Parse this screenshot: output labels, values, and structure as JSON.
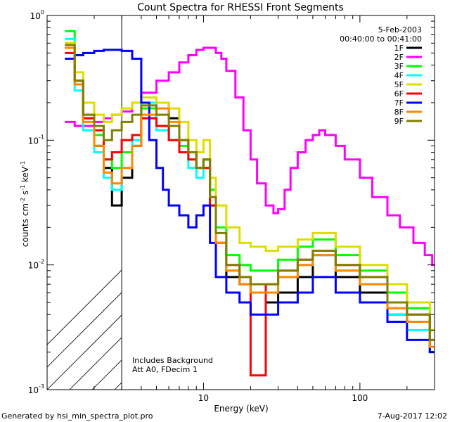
{
  "chart_data": {
    "type": "line",
    "title": "Count Spectra for RHESSI Front Segments",
    "xlabel": "Energy (keV)",
    "ylabel_parts": {
      "prefix": "counts cm",
      "exp1": "-2",
      "mid1": " s",
      "exp2": "-1",
      "mid2": " keV",
      "exp3": "-1"
    },
    "xscale": "log",
    "yscale": "log",
    "xlim": [
      1.0,
      300.0
    ],
    "ylim": [
      0.001,
      1.0
    ],
    "x_ticks": [
      {
        "value": 10,
        "label": "10"
      },
      {
        "value": 100,
        "label": "100"
      }
    ],
    "y_ticks": [
      {
        "value": 1.0,
        "base": "10",
        "exp": "0"
      },
      {
        "value": 0.1,
        "base": "10",
        "exp": "-1"
      },
      {
        "value": 0.01,
        "base": "10",
        "exp": "-2"
      },
      {
        "value": 0.001,
        "base": "10",
        "exp": "-3"
      }
    ],
    "legend": {
      "placement": "top-right",
      "date": "5-Feb-2003",
      "time_range": "00:40:00 to 00:41:00"
    },
    "hatched_region": {
      "x_min": 1.0,
      "x_max": 3.0
    },
    "annotation_lines": [
      "Includes Background",
      "Att A0, FDecim 1"
    ],
    "footer_left": "Generated by hsi_min_spectra_plot.pro",
    "footer_right": "7-Aug-2017 12:02",
    "series": [
      {
        "name": "1F",
        "color": "#000000",
        "x": [
          1.3,
          1.5,
          1.7,
          2.0,
          2.3,
          2.6,
          3.0,
          3.5,
          4.0,
          5.0,
          6.0,
          7.0,
          8.0,
          9.0,
          10.0,
          11.0,
          12.0,
          14.0,
          17.0,
          20.0,
          25.0,
          30.0,
          40.0,
          50.0,
          70.0,
          100.0,
          150.0,
          200.0,
          280.0
        ],
        "y": [
          0.55,
          0.3,
          0.15,
          0.09,
          0.06,
          0.03,
          0.05,
          0.09,
          0.15,
          0.2,
          0.15,
          0.1,
          0.08,
          0.06,
          0.07,
          0.03,
          0.015,
          0.008,
          0.007,
          0.006,
          0.005,
          0.006,
          0.008,
          0.012,
          0.008,
          0.006,
          0.004,
          0.0035,
          0.002
        ]
      },
      {
        "name": "2F",
        "color": "#ff00ff",
        "x": [
          1.3,
          1.5,
          1.7,
          2.0,
          2.3,
          2.6,
          3.0,
          3.5,
          4.0,
          5.0,
          6.0,
          7.0,
          8.0,
          9.0,
          10.0,
          11.0,
          12.0,
          13.0,
          14.0,
          16.0,
          18.0,
          20.0,
          22.0,
          25.0,
          28.0,
          30.0,
          33.0,
          36.0,
          40.0,
          45.0,
          50.0,
          55.0,
          60.0,
          70.0,
          80.0,
          100.0,
          120.0,
          150.0,
          180.0,
          220.0,
          260.0,
          290.0
        ],
        "y": [
          0.14,
          0.13,
          0.13,
          0.14,
          0.15,
          0.16,
          0.17,
          0.2,
          0.24,
          0.3,
          0.35,
          0.42,
          0.48,
          0.53,
          0.55,
          0.55,
          0.5,
          0.45,
          0.36,
          0.22,
          0.12,
          0.07,
          0.045,
          0.03,
          0.026,
          0.028,
          0.04,
          0.06,
          0.08,
          0.1,
          0.11,
          0.12,
          0.11,
          0.09,
          0.07,
          0.05,
          0.035,
          0.025,
          0.02,
          0.015,
          0.012,
          0.01
        ]
      },
      {
        "name": "3F",
        "color": "#00ff00",
        "x": [
          1.3,
          1.5,
          1.7,
          2.0,
          2.3,
          2.6,
          3.0,
          3.5,
          4.0,
          5.0,
          6.0,
          7.0,
          8.0,
          9.0,
          10.0,
          11.0,
          12.0,
          14.0,
          17.0,
          20.0,
          25.0,
          30.0,
          40.0,
          50.0,
          70.0,
          100.0,
          150.0,
          200.0,
          280.0
        ],
        "y": [
          0.75,
          0.3,
          0.16,
          0.11,
          0.07,
          0.06,
          0.08,
          0.1,
          0.18,
          0.13,
          0.1,
          0.09,
          0.07,
          0.06,
          0.07,
          0.04,
          0.02,
          0.012,
          0.01,
          0.009,
          0.009,
          0.011,
          0.014,
          0.016,
          0.012,
          0.009,
          0.006,
          0.0045,
          0.003
        ]
      },
      {
        "name": "4F",
        "color": "#00ffff",
        "x": [
          1.3,
          1.5,
          1.7,
          2.0,
          2.3,
          2.6,
          3.0,
          3.5,
          4.0,
          5.0,
          6.0,
          7.0,
          8.0,
          9.0,
          10.0,
          11.0,
          12.0,
          14.0,
          17.0,
          20.0,
          25.0,
          30.0,
          40.0,
          50.0,
          70.0,
          100.0,
          150.0,
          200.0,
          280.0
        ],
        "y": [
          0.65,
          0.25,
          0.12,
          0.08,
          0.05,
          0.04,
          0.06,
          0.1,
          0.2,
          0.12,
          0.1,
          0.08,
          0.06,
          0.05,
          0.06,
          0.03,
          0.015,
          0.009,
          0.007,
          0.006,
          0.006,
          0.008,
          0.01,
          0.012,
          0.009,
          0.007,
          0.004,
          0.003,
          0.002
        ]
      },
      {
        "name": "5F",
        "color": "#dddd00",
        "x": [
          1.3,
          1.5,
          1.7,
          2.0,
          2.3,
          2.6,
          3.0,
          3.5,
          4.0,
          5.0,
          6.0,
          7.0,
          8.0,
          9.0,
          10.0,
          11.0,
          12.0,
          14.0,
          17.0,
          20.0,
          25.0,
          30.0,
          40.0,
          50.0,
          70.0,
          100.0,
          150.0,
          200.0,
          280.0
        ],
        "y": [
          0.6,
          0.35,
          0.2,
          0.16,
          0.14,
          0.16,
          0.18,
          0.2,
          0.22,
          0.2,
          0.18,
          0.14,
          0.1,
          0.08,
          0.1,
          0.05,
          0.03,
          0.02,
          0.015,
          0.014,
          0.013,
          0.014,
          0.016,
          0.018,
          0.014,
          0.01,
          0.007,
          0.005,
          0.003
        ]
      },
      {
        "name": "6F",
        "color": "#ff0000",
        "x": [
          1.3,
          1.5,
          1.7,
          2.0,
          2.3,
          2.6,
          3.0,
          3.5,
          4.0,
          5.0,
          6.0,
          7.0,
          8.0,
          9.0,
          10.0,
          11.0,
          12.0,
          14.0,
          17.0,
          20.0,
          25.0,
          30.0,
          40.0,
          50.0,
          70.0,
          100.0,
          150.0,
          200.0,
          280.0
        ],
        "y": [
          0.5,
          0.3,
          0.15,
          0.12,
          0.07,
          0.08,
          0.1,
          0.11,
          0.15,
          0.13,
          0.1,
          0.08,
          0.07,
          0.06,
          0.06,
          0.03,
          0.015,
          0.01,
          0.008,
          0.0013,
          0.007,
          0.009,
          0.011,
          0.013,
          0.01,
          0.008,
          0.005,
          0.004,
          0.0025
        ]
      },
      {
        "name": "7F",
        "color": "#0000ff",
        "x": [
          1.3,
          1.5,
          1.7,
          2.0,
          2.3,
          2.6,
          3.0,
          3.5,
          4.0,
          4.5,
          5.0,
          5.5,
          6.0,
          7.0,
          8.0,
          9.0,
          10.0,
          11.0,
          12.0,
          14.0,
          17.0,
          20.0,
          25.0,
          30.0,
          40.0,
          50.0,
          70.0,
          100.0,
          150.0,
          200.0,
          280.0
        ],
        "y": [
          0.45,
          0.48,
          0.5,
          0.52,
          0.53,
          0.53,
          0.52,
          0.45,
          0.2,
          0.1,
          0.06,
          0.04,
          0.03,
          0.025,
          0.02,
          0.025,
          0.03,
          0.015,
          0.008,
          0.006,
          0.005,
          0.004,
          0.004,
          0.005,
          0.006,
          0.008,
          0.006,
          0.005,
          0.0035,
          0.0025,
          0.002
        ]
      },
      {
        "name": "8F",
        "color": "#ff8800",
        "x": [
          1.3,
          1.5,
          1.7,
          2.0,
          2.3,
          2.6,
          3.0,
          3.5,
          4.0,
          5.0,
          6.0,
          7.0,
          8.0,
          9.0,
          10.0,
          11.0,
          12.0,
          14.0,
          17.0,
          20.0,
          25.0,
          30.0,
          40.0,
          50.0,
          70.0,
          100.0,
          150.0,
          200.0,
          280.0
        ],
        "y": [
          0.55,
          0.28,
          0.14,
          0.09,
          0.055,
          0.045,
          0.06,
          0.09,
          0.16,
          0.18,
          0.14,
          0.1,
          0.08,
          0.06,
          0.07,
          0.035,
          0.015,
          0.009,
          0.007,
          0.006,
          0.006,
          0.008,
          0.01,
          0.012,
          0.009,
          0.007,
          0.0045,
          0.0035,
          0.0022
        ]
      },
      {
        "name": "9F",
        "color": "#808000",
        "x": [
          1.3,
          1.5,
          1.7,
          2.0,
          2.3,
          2.6,
          3.0,
          3.5,
          4.0,
          5.0,
          6.0,
          7.0,
          8.0,
          9.0,
          10.0,
          11.0,
          12.0,
          14.0,
          17.0,
          20.0,
          25.0,
          30.0,
          40.0,
          50.0,
          70.0,
          100.0,
          150.0,
          200.0,
          280.0
        ],
        "y": [
          0.58,
          0.3,
          0.16,
          0.13,
          0.1,
          0.12,
          0.14,
          0.16,
          0.19,
          0.16,
          0.13,
          0.1,
          0.08,
          0.06,
          0.07,
          0.035,
          0.018,
          0.01,
          0.008,
          0.007,
          0.007,
          0.009,
          0.011,
          0.013,
          0.01,
          0.008,
          0.005,
          0.004,
          0.0025
        ]
      }
    ]
  }
}
